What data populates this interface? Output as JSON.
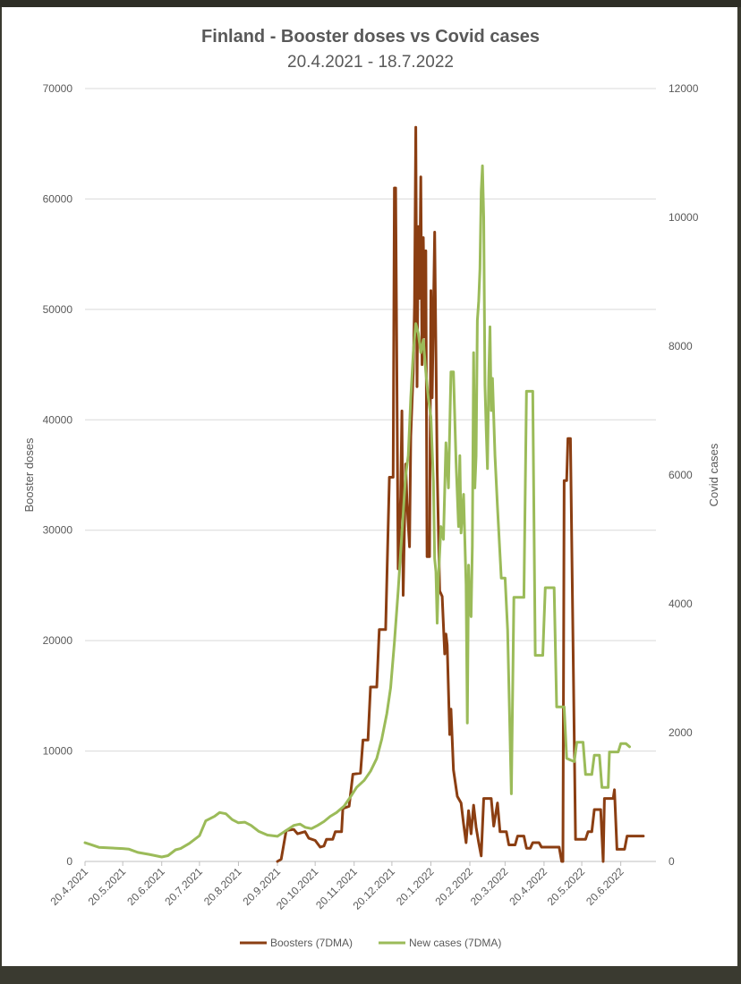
{
  "chart_data": {
    "type": "line",
    "title": "Finland - Booster doses vs Covid cases",
    "subtitle": "20.4.2021 - 18.7.2022",
    "ylabel": "Booster doses",
    "y2label": "Covid cases",
    "ylim": [
      0,
      70000
    ],
    "y2lim": [
      0,
      12000
    ],
    "yticks": [
      "0",
      "10000",
      "20000",
      "30000",
      "40000",
      "50000",
      "60000",
      "70000"
    ],
    "y2ticks": [
      "0",
      "2000",
      "4000",
      "6000",
      "8000",
      "10000",
      "12000"
    ],
    "xticks": [
      "20.4.2021",
      "20.5.2021",
      "20.6.2021",
      "20.7.2021",
      "20.8.2021",
      "20.9.2021",
      "20.10.2021",
      "20.11.2021",
      "20.12.2021",
      "20.1.2022",
      "20.2.2022",
      "20.3.2022",
      "20.4.2022",
      "20.5.2022",
      "20.6.2022"
    ],
    "xlim": [
      "2021-04-20",
      "2022-07-18"
    ],
    "grid": true,
    "legend_position": "bottom",
    "series": [
      {
        "name": "Boosters (7DMA)",
        "color": "#8B3E12",
        "axis": "left",
        "points": [
          [
            "2021-09-20",
            0
          ],
          [
            "2021-09-23",
            200
          ],
          [
            "2021-09-25",
            1500
          ],
          [
            "2021-09-27",
            2800
          ],
          [
            "2021-10-03",
            2900
          ],
          [
            "2021-10-06",
            2500
          ],
          [
            "2021-10-12",
            2700
          ],
          [
            "2021-10-15",
            2100
          ],
          [
            "2021-10-20",
            1900
          ],
          [
            "2021-10-24",
            1300
          ],
          [
            "2021-10-27",
            1400
          ],
          [
            "2021-10-29",
            2000
          ],
          [
            "2021-11-03",
            2000
          ],
          [
            "2021-11-05",
            2700
          ],
          [
            "2021-11-10",
            2700
          ],
          [
            "2021-11-11",
            4800
          ],
          [
            "2021-11-16",
            5000
          ],
          [
            "2021-11-19",
            7900
          ],
          [
            "2021-11-25",
            8000
          ],
          [
            "2021-11-27",
            11000
          ],
          [
            "2021-12-01",
            11000
          ],
          [
            "2021-12-03",
            15800
          ],
          [
            "2021-12-08",
            15800
          ],
          [
            "2021-12-10",
            21000
          ],
          [
            "2021-12-15",
            21000
          ],
          [
            "2021-12-18",
            34800
          ],
          [
            "2021-12-21",
            34800
          ],
          [
            "2021-12-22",
            61000
          ],
          [
            "2021-12-23",
            61000
          ],
          [
            "2021-12-25",
            26500
          ],
          [
            "2021-12-27",
            33000
          ],
          [
            "2021-12-28",
            40800
          ],
          [
            "2021-12-29",
            24100
          ],
          [
            "2021-12-31",
            36000
          ],
          [
            "2022-01-01",
            32500
          ],
          [
            "2022-01-03",
            28500
          ],
          [
            "2022-01-04",
            38500
          ],
          [
            "2022-01-06",
            44500
          ],
          [
            "2022-01-07",
            50500
          ],
          [
            "2022-01-08",
            66500
          ],
          [
            "2022-01-09",
            43000
          ],
          [
            "2022-01-10",
            57500
          ],
          [
            "2022-01-11",
            51000
          ],
          [
            "2022-01-12",
            62000
          ],
          [
            "2022-01-13",
            45000
          ],
          [
            "2022-01-14",
            56500
          ],
          [
            "2022-01-15",
            47500
          ],
          [
            "2022-01-16",
            55300
          ],
          [
            "2022-01-17",
            27600
          ],
          [
            "2022-01-19",
            27600
          ],
          [
            "2022-01-20",
            51700
          ],
          [
            "2022-01-21",
            42000
          ],
          [
            "2022-01-23",
            57000
          ],
          [
            "2022-01-25",
            35500
          ],
          [
            "2022-01-27",
            24500
          ],
          [
            "2022-01-29",
            24000
          ],
          [
            "2022-01-31",
            18800
          ],
          [
            "2022-02-01",
            20600
          ],
          [
            "2022-02-02",
            19600
          ],
          [
            "2022-02-04",
            11500
          ],
          [
            "2022-02-05",
            13800
          ],
          [
            "2022-02-07",
            8300
          ],
          [
            "2022-02-10",
            5900
          ],
          [
            "2022-02-13",
            5300
          ],
          [
            "2022-02-15",
            3400
          ],
          [
            "2022-02-17",
            1700
          ],
          [
            "2022-02-19",
            4600
          ],
          [
            "2022-02-21",
            2500
          ],
          [
            "2022-02-23",
            5100
          ],
          [
            "2022-02-25",
            3100
          ],
          [
            "2022-02-27",
            1700
          ],
          [
            "2022-03-01",
            500
          ],
          [
            "2022-03-03",
            5700
          ],
          [
            "2022-03-09",
            5700
          ],
          [
            "2022-03-11",
            3200
          ],
          [
            "2022-03-14",
            5300
          ],
          [
            "2022-03-16",
            2700
          ],
          [
            "2022-03-21",
            2700
          ],
          [
            "2022-03-23",
            1500
          ],
          [
            "2022-03-28",
            1500
          ],
          [
            "2022-03-30",
            2300
          ],
          [
            "2022-04-04",
            2300
          ],
          [
            "2022-04-06",
            1200
          ],
          [
            "2022-04-09",
            1200
          ],
          [
            "2022-04-11",
            1700
          ],
          [
            "2022-04-16",
            1700
          ],
          [
            "2022-04-18",
            1300
          ],
          [
            "2022-05-02",
            1300
          ],
          [
            "2022-05-04",
            0
          ],
          [
            "2022-05-05",
            0
          ],
          [
            "2022-05-06",
            34500
          ],
          [
            "2022-05-08",
            34500
          ],
          [
            "2022-05-09",
            38300
          ],
          [
            "2022-05-11",
            38300
          ],
          [
            "2022-05-15",
            2000
          ],
          [
            "2022-05-23",
            2000
          ],
          [
            "2022-05-25",
            2700
          ],
          [
            "2022-05-28",
            2700
          ],
          [
            "2022-05-30",
            4700
          ],
          [
            "2022-06-04",
            4700
          ],
          [
            "2022-06-06",
            0
          ],
          [
            "2022-06-07",
            5700
          ],
          [
            "2022-06-14",
            5700
          ],
          [
            "2022-06-15",
            6500
          ],
          [
            "2022-06-17",
            1100
          ],
          [
            "2022-06-23",
            1100
          ],
          [
            "2022-06-25",
            2300
          ],
          [
            "2022-07-08",
            2300
          ]
        ]
      },
      {
        "name": "New cases (7DMA)",
        "color": "#9BBB59",
        "axis": "right",
        "points": [
          [
            "2021-04-20",
            290
          ],
          [
            "2021-04-25",
            260
          ],
          [
            "2021-05-01",
            220
          ],
          [
            "2021-05-10",
            210
          ],
          [
            "2021-05-20",
            200
          ],
          [
            "2021-05-25",
            190
          ],
          [
            "2021-06-01",
            140
          ],
          [
            "2021-06-10",
            110
          ],
          [
            "2021-06-20",
            70
          ],
          [
            "2021-06-25",
            90
          ],
          [
            "2021-07-01",
            180
          ],
          [
            "2021-07-05",
            200
          ],
          [
            "2021-07-12",
            280
          ],
          [
            "2021-07-20",
            400
          ],
          [
            "2021-07-25",
            630
          ],
          [
            "2021-08-01",
            700
          ],
          [
            "2021-08-05",
            760
          ],
          [
            "2021-08-10",
            740
          ],
          [
            "2021-08-15",
            650
          ],
          [
            "2021-08-20",
            600
          ],
          [
            "2021-08-25",
            610
          ],
          [
            "2021-08-30",
            560
          ],
          [
            "2021-09-05",
            470
          ],
          [
            "2021-09-12",
            410
          ],
          [
            "2021-09-20",
            390
          ],
          [
            "2021-09-27",
            480
          ],
          [
            "2021-10-03",
            560
          ],
          [
            "2021-10-08",
            580
          ],
          [
            "2021-10-12",
            530
          ],
          [
            "2021-10-17",
            510
          ],
          [
            "2021-10-22",
            560
          ],
          [
            "2021-10-27",
            620
          ],
          [
            "2021-11-01",
            700
          ],
          [
            "2021-11-06",
            760
          ],
          [
            "2021-11-12",
            860
          ],
          [
            "2021-11-17",
            1000
          ],
          [
            "2021-11-22",
            1150
          ],
          [
            "2021-11-28",
            1260
          ],
          [
            "2021-12-03",
            1400
          ],
          [
            "2021-12-08",
            1600
          ],
          [
            "2021-12-12",
            1900
          ],
          [
            "2021-12-16",
            2300
          ],
          [
            "2021-12-19",
            2700
          ],
          [
            "2021-12-22",
            3400
          ],
          [
            "2021-12-25",
            4200
          ],
          [
            "2021-12-28",
            5100
          ],
          [
            "2021-12-31",
            6000
          ],
          [
            "2022-01-02",
            6300
          ],
          [
            "2022-01-04",
            7200
          ],
          [
            "2022-01-06",
            7900
          ],
          [
            "2022-01-08",
            8350
          ],
          [
            "2022-01-10",
            8200
          ],
          [
            "2022-01-12",
            7900
          ],
          [
            "2022-01-14",
            8100
          ],
          [
            "2022-01-16",
            7600
          ],
          [
            "2022-01-18",
            7200
          ],
          [
            "2022-01-20",
            6900
          ],
          [
            "2022-01-22",
            5900
          ],
          [
            "2022-01-23",
            4700
          ],
          [
            "2022-01-24",
            4500
          ],
          [
            "2022-01-25",
            3700
          ],
          [
            "2022-01-26",
            4400
          ],
          [
            "2022-01-28",
            5200
          ],
          [
            "2022-01-30",
            5000
          ],
          [
            "2022-02-01",
            6500
          ],
          [
            "2022-02-03",
            5800
          ],
          [
            "2022-02-05",
            7600
          ],
          [
            "2022-02-07",
            7600
          ],
          [
            "2022-02-09",
            6200
          ],
          [
            "2022-02-11",
            5200
          ],
          [
            "2022-02-12",
            6300
          ],
          [
            "2022-02-13",
            5100
          ],
          [
            "2022-02-15",
            5700
          ],
          [
            "2022-02-17",
            4300
          ],
          [
            "2022-02-18",
            2150
          ],
          [
            "2022-02-19",
            4600
          ],
          [
            "2022-02-20",
            3900
          ],
          [
            "2022-02-21",
            3800
          ],
          [
            "2022-02-22",
            4900
          ],
          [
            "2022-02-23",
            7900
          ],
          [
            "2022-02-24",
            5800
          ],
          [
            "2022-02-25",
            6300
          ],
          [
            "2022-02-26",
            8400
          ],
          [
            "2022-02-27",
            8700
          ],
          [
            "2022-02-28",
            9200
          ],
          [
            "2022-03-01",
            10400
          ],
          [
            "2022-03-02",
            10800
          ],
          [
            "2022-03-03",
            10000
          ],
          [
            "2022-03-04",
            7400
          ],
          [
            "2022-03-05",
            6700
          ],
          [
            "2022-03-06",
            6100
          ],
          [
            "2022-03-07",
            7500
          ],
          [
            "2022-03-08",
            8300
          ],
          [
            "2022-03-09",
            7000
          ],
          [
            "2022-03-10",
            7500
          ],
          [
            "2022-03-12",
            6300
          ],
          [
            "2022-03-14",
            5500
          ],
          [
            "2022-03-17",
            4400
          ],
          [
            "2022-03-20",
            4400
          ],
          [
            "2022-03-22",
            3600
          ],
          [
            "2022-03-25",
            1050
          ],
          [
            "2022-03-27",
            4100
          ],
          [
            "2022-04-04",
            4100
          ],
          [
            "2022-04-06",
            7300
          ],
          [
            "2022-04-11",
            7300
          ],
          [
            "2022-04-13",
            3200
          ],
          [
            "2022-04-19",
            3200
          ],
          [
            "2022-04-21",
            4250
          ],
          [
            "2022-04-28",
            4250
          ],
          [
            "2022-04-30",
            2400
          ],
          [
            "2022-05-06",
            2400
          ],
          [
            "2022-05-08",
            1600
          ],
          [
            "2022-05-14",
            1550
          ],
          [
            "2022-05-16",
            1850
          ],
          [
            "2022-05-21",
            1850
          ],
          [
            "2022-05-23",
            1350
          ],
          [
            "2022-05-28",
            1350
          ],
          [
            "2022-05-30",
            1650
          ],
          [
            "2022-06-03",
            1650
          ],
          [
            "2022-06-05",
            1150
          ],
          [
            "2022-06-10",
            1150
          ],
          [
            "2022-06-11",
            1700
          ],
          [
            "2022-06-18",
            1700
          ],
          [
            "2022-06-20",
            1830
          ],
          [
            "2022-06-24",
            1830
          ],
          [
            "2022-06-27",
            1780
          ]
        ]
      }
    ]
  }
}
